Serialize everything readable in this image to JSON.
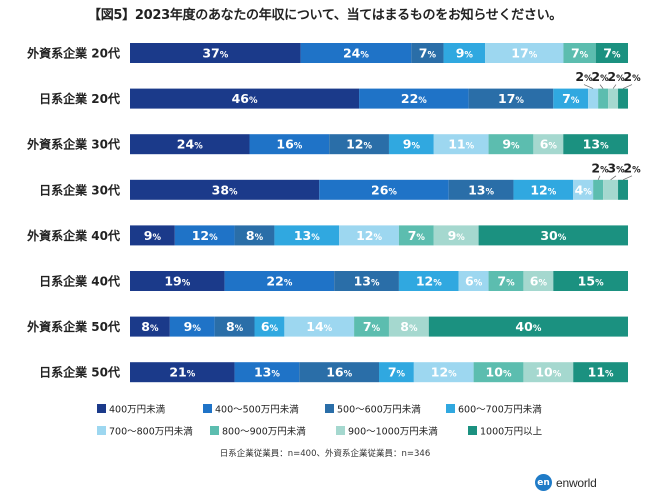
{
  "chart_data": {
    "type": "bar",
    "orientation": "horizontal",
    "stacked": true,
    "title": "【図5】2023年度のあなたの年収について、当てはまるものをお知らせください。",
    "categories": [
      "外資系企業 20代",
      "日系企業 20代",
      "外資系企業 30代",
      "日系企業 30代",
      "外資系企業 40代",
      "日系企業 40代",
      "外資系企業 50代",
      "日系企業 50代"
    ],
    "series": [
      {
        "name": "400万円未満",
        "color": "#1b3a8a",
        "values": [
          37,
          46,
          24,
          38,
          9,
          19,
          8,
          21
        ]
      },
      {
        "name": "400～500万円未満",
        "color": "#1f73c7",
        "values": [
          24,
          22,
          16,
          26,
          12,
          22,
          9,
          13
        ]
      },
      {
        "name": "500～600万円未満",
        "color": "#2a6ea8",
        "values": [
          7,
          17,
          12,
          13,
          8,
          13,
          8,
          16
        ]
      },
      {
        "name": "600～700万円未満",
        "color": "#30a8e0",
        "values": [
          9,
          7,
          9,
          12,
          13,
          12,
          6,
          7
        ]
      },
      {
        "name": "700～800万円未満",
        "color": "#9dd7f0",
        "values": [
          17,
          2,
          11,
          4,
          12,
          6,
          14,
          12
        ]
      },
      {
        "name": "800～900万円未満",
        "color": "#5cbdaf",
        "values": [
          7,
          2,
          9,
          2,
          7,
          7,
          7,
          10
        ]
      },
      {
        "name": "900～1000万円未満",
        "color": "#a5d8cf",
        "values": [
          0,
          2,
          6,
          3,
          9,
          6,
          8,
          10
        ]
      },
      {
        "name": "1000万円以上",
        "color": "#1b9180",
        "values": [
          7,
          2,
          13,
          2,
          30,
          15,
          40,
          11
        ]
      }
    ],
    "value_suffix": "%",
    "legend_position": "bottom"
  },
  "note": "日系企業従業員：n=400、外資系企業従業員：n=346",
  "logo": {
    "mark": "en",
    "text": "enworld"
  }
}
